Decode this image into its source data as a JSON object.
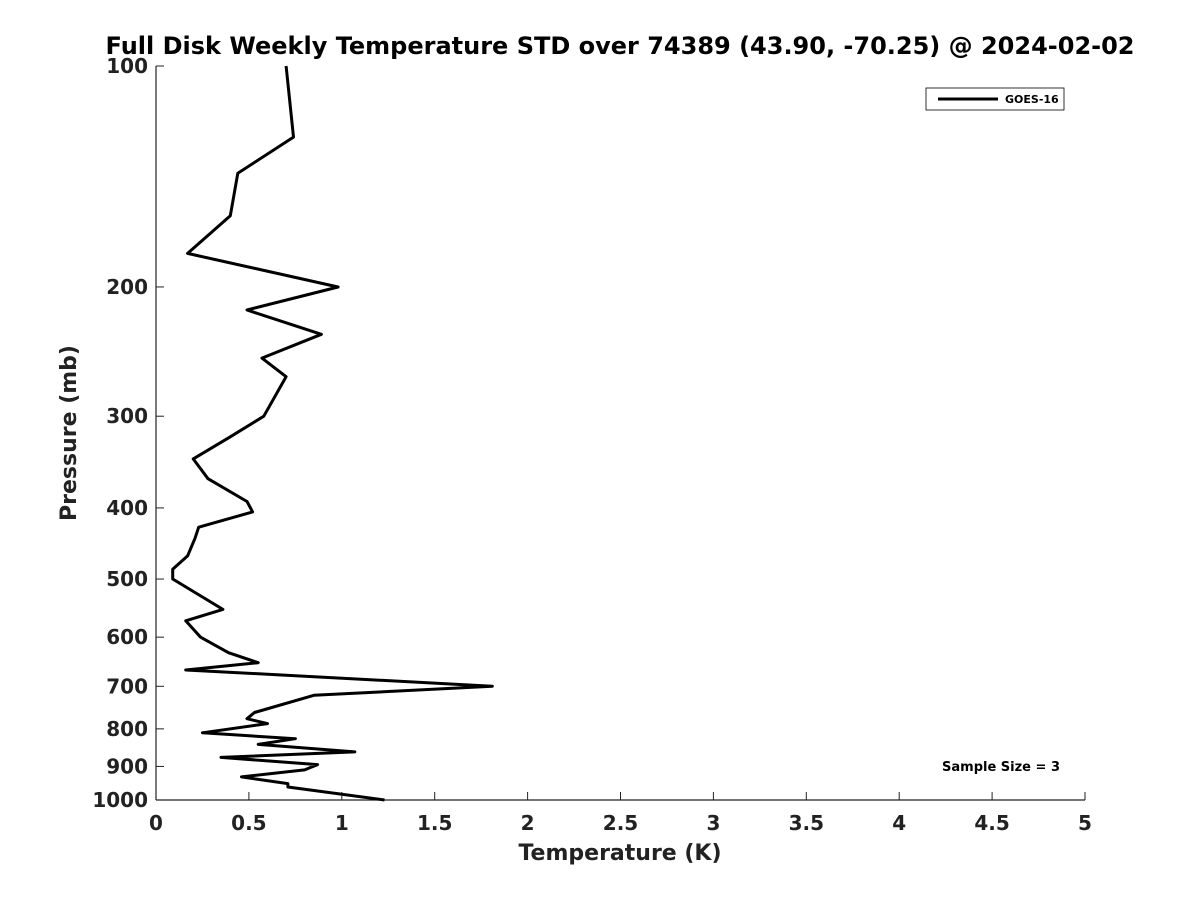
{
  "chart_data": {
    "type": "line",
    "title": "Full Disk Weekly Temperature STD over 74389 (43.90, -70.25) @ 2024-02-02",
    "xlabel": "Temperature (K)",
    "ylabel": "Pressure (mb)",
    "xlim": [
      0,
      5
    ],
    "ylim": [
      100,
      1000
    ],
    "y_scale": "log",
    "y_direction": "reversed",
    "x_ticks": [
      "0",
      "0.5",
      "1",
      "1.5",
      "2",
      "2.5",
      "3",
      "3.5",
      "4",
      "4.5",
      "5"
    ],
    "y_ticks": [
      "100",
      "200",
      "300",
      "400",
      "500",
      "600",
      "700",
      "800",
      "900",
      "1000"
    ],
    "grid": false,
    "legend_position": "top-right",
    "annotation": "Sample Size = 3",
    "series": [
      {
        "name": "GOES-16",
        "color": "#000000",
        "x": [
          0.7,
          0.74,
          0.44,
          0.4,
          0.17,
          0.98,
          0.49,
          0.89,
          0.57,
          0.7,
          0.58,
          0.4,
          0.2,
          0.28,
          0.49,
          0.52,
          0.23,
          0.21,
          0.17,
          0.09,
          0.09,
          0.36,
          0.16,
          0.24,
          0.39,
          0.55,
          0.16,
          0.65,
          1.81,
          0.85,
          0.53,
          0.49,
          0.6,
          0.25,
          0.75,
          0.55,
          1.07,
          0.35,
          0.87,
          0.8,
          0.46,
          0.71,
          0.71,
          1.23
        ],
        "y": [
          100,
          125,
          140,
          160,
          180,
          200,
          215,
          232,
          250,
          265,
          300,
          320,
          343,
          365,
          392,
          405,
          425,
          440,
          465,
          485,
          500,
          550,
          570,
          600,
          630,
          650,
          665,
          675,
          700,
          720,
          760,
          775,
          787,
          810,
          825,
          840,
          860,
          875,
          895,
          910,
          930,
          950,
          960,
          1000
        ]
      }
    ]
  }
}
